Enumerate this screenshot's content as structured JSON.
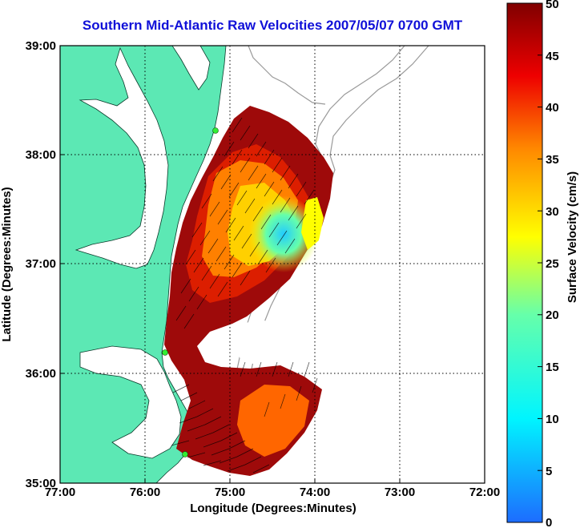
{
  "title": "Southern Mid-Atlantic Raw Velocities 2007/05/07 0700 GMT",
  "x_axis": {
    "label": "Longitude (Degrees:Minutes)",
    "ticks": [
      "77:00",
      "76:00",
      "75:00",
      "74:00",
      "73:00",
      "72:00"
    ]
  },
  "y_axis": {
    "label": "Latitude (Degrees:Minutes)",
    "ticks": [
      "39:00",
      "38:00",
      "37:00",
      "36:00",
      "35:00"
    ]
  },
  "colorbar": {
    "label": "Surface Velocity (cm/s)",
    "range": [
      0,
      50
    ],
    "ticks": [
      "50",
      "45",
      "40",
      "35",
      "30",
      "25",
      "20",
      "15",
      "10",
      "5",
      "0"
    ]
  },
  "colors": {
    "land": "#5ce8b4",
    "water": "#ffffff",
    "bathymetry": "#9a9a9a",
    "station": "#33ee33",
    "title": "#1010d8"
  }
}
